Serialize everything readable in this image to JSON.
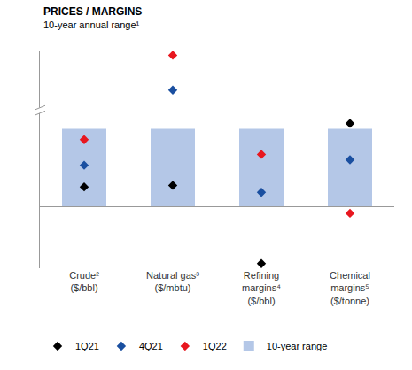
{
  "chart_data": {
    "type": "range_dot",
    "title": "PRICES / MARGINS",
    "subtitle": "10-year annual range¹",
    "categories": [
      "Crude²\n($/bbl)",
      "Natural gas³\n($/mbtu)",
      "Refining\nmargins⁴\n($/bbl)",
      "Chemical\nmargins⁵\n($/tonne)"
    ],
    "range_name": "10-year range",
    "range_color": "#b4c7e7",
    "range_low": [
      0,
      0,
      0,
      0
    ],
    "range_high": [
      100,
      100,
      100,
      100
    ],
    "series": [
      {
        "name": "1Q21",
        "color": "#000000",
        "marker": "diamond",
        "values": [
          25,
          27,
          -74,
          107
        ]
      },
      {
        "name": "4Q21",
        "color": "#1a4fa0",
        "marker": "diamond",
        "values": [
          53,
          150,
          18,
          60
        ]
      },
      {
        "name": "1Q22",
        "color": "#e8171f",
        "marker": "diamond",
        "values": [
          86,
          195,
          67,
          -9
        ]
      }
    ],
    "ylim": [
      -80,
      200
    ],
    "yticks": [],
    "tick_labels": "x",
    "legend": "bottom"
  }
}
